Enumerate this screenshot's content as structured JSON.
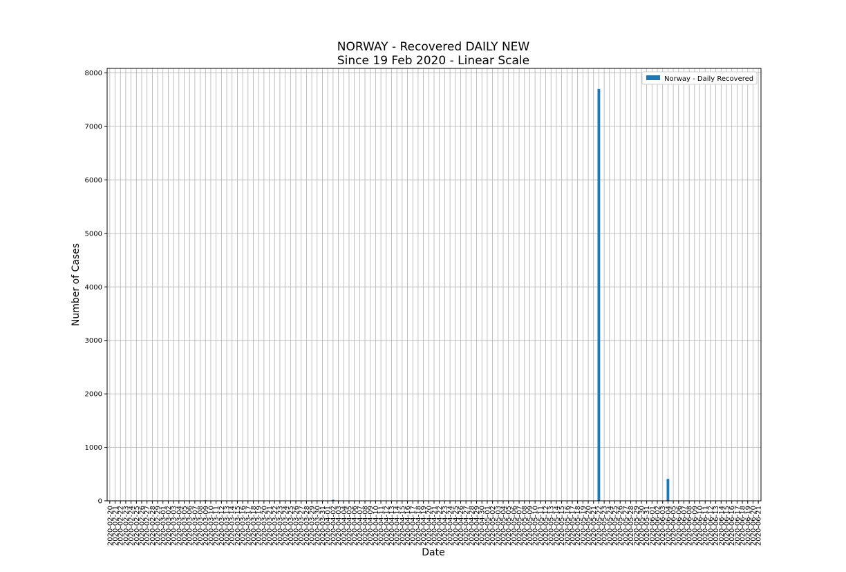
{
  "chart_data": {
    "type": "bar",
    "title": "NORWAY - Recovered DAILY NEW",
    "subtitle": "Since 19 Feb 2020 - Linear Scale",
    "x_label": "Date",
    "y_label": "Number of Cases",
    "categories": [
      "2020-02-20",
      "2020-02-21",
      "2020-02-22",
      "2020-02-23",
      "2020-02-24",
      "2020-02-25",
      "2020-02-26",
      "2020-02-27",
      "2020-02-28",
      "2020-02-29",
      "2020-03-01",
      "2020-03-02",
      "2020-03-03",
      "2020-03-04",
      "2020-03-05",
      "2020-03-06",
      "2020-03-07",
      "2020-03-08",
      "2020-03-09",
      "2020-03-10",
      "2020-03-11",
      "2020-03-12",
      "2020-03-13",
      "2020-03-14",
      "2020-03-15",
      "2020-03-16",
      "2020-03-17",
      "2020-03-18",
      "2020-03-19",
      "2020-03-20",
      "2020-03-21",
      "2020-03-22",
      "2020-03-23",
      "2020-03-24",
      "2020-03-25",
      "2020-03-26",
      "2020-03-27",
      "2020-03-28",
      "2020-03-29",
      "2020-03-30",
      "2020-03-31",
      "2020-04-01",
      "2020-04-02",
      "2020-04-03",
      "2020-04-04",
      "2020-04-05",
      "2020-04-06",
      "2020-04-07",
      "2020-04-08",
      "2020-04-09",
      "2020-04-10",
      "2020-04-11",
      "2020-04-12",
      "2020-04-13",
      "2020-04-14",
      "2020-04-15",
      "2020-04-16",
      "2020-04-17",
      "2020-04-18",
      "2020-04-19",
      "2020-04-20",
      "2020-04-21",
      "2020-04-22",
      "2020-04-23",
      "2020-04-24",
      "2020-04-25",
      "2020-04-26",
      "2020-04-27",
      "2020-04-28",
      "2020-04-29",
      "2020-04-30",
      "2020-05-01",
      "2020-05-02",
      "2020-05-03",
      "2020-05-04",
      "2020-05-05",
      "2020-05-06",
      "2020-05-07",
      "2020-05-08",
      "2020-05-09",
      "2020-05-10",
      "2020-05-11",
      "2020-05-12",
      "2020-05-13",
      "2020-05-14",
      "2020-05-15",
      "2020-05-16",
      "2020-05-17",
      "2020-05-18",
      "2020-05-19",
      "2020-05-20",
      "2020-05-21",
      "2020-05-22",
      "2020-05-23",
      "2020-05-24",
      "2020-05-25",
      "2020-05-26",
      "2020-05-27",
      "2020-05-28",
      "2020-05-29",
      "2020-05-30",
      "2020-05-31",
      "2020-06-01",
      "2020-06-02",
      "2020-06-03",
      "2020-06-04",
      "2020-06-05",
      "2020-06-06",
      "2020-06-07",
      "2020-06-08",
      "2020-06-09",
      "2020-06-10",
      "2020-06-11",
      "2020-06-12",
      "2020-06-13",
      "2020-06-14",
      "2020-06-15",
      "2020-06-16",
      "2020-06-17",
      "2020-06-18",
      "2020-06-19",
      "2020-06-20",
      "2020-06-21"
    ],
    "series": [
      {
        "name": "Norway - Daily Recovered",
        "color": "#1f77b4",
        "values": [
          0,
          0,
          0,
          0,
          0,
          0,
          0,
          0,
          0,
          0,
          0,
          0,
          0,
          0,
          0,
          0,
          0,
          0,
          10,
          0,
          0,
          0,
          0,
          0,
          0,
          0,
          0,
          0,
          0,
          0,
          0,
          0,
          0,
          5,
          0,
          0,
          0,
          5,
          0,
          8,
          8,
          0,
          20,
          0,
          0,
          0,
          0,
          0,
          0,
          0,
          0,
          0,
          0,
          0,
          0,
          0,
          0,
          0,
          0,
          0,
          0,
          0,
          0,
          0,
          0,
          0,
          0,
          0,
          0,
          0,
          0,
          0,
          0,
          0,
          0,
          0,
          0,
          0,
          0,
          0,
          0,
          0,
          0,
          0,
          0,
          0,
          0,
          0,
          0,
          0,
          0,
          0,
          7700,
          0,
          0,
          0,
          0,
          0,
          0,
          0,
          0,
          0,
          0,
          0,
          0,
          410,
          0,
          0,
          0,
          0,
          0,
          0,
          0,
          0,
          0,
          0,
          0,
          0,
          0,
          0,
          0,
          0,
          0
        ]
      }
    ],
    "ylim": [
      0,
      8085
    ],
    "yticks": [
      0,
      1000,
      2000,
      3000,
      4000,
      5000,
      6000,
      7000,
      8000
    ],
    "grid": true,
    "legend": "upper right"
  }
}
